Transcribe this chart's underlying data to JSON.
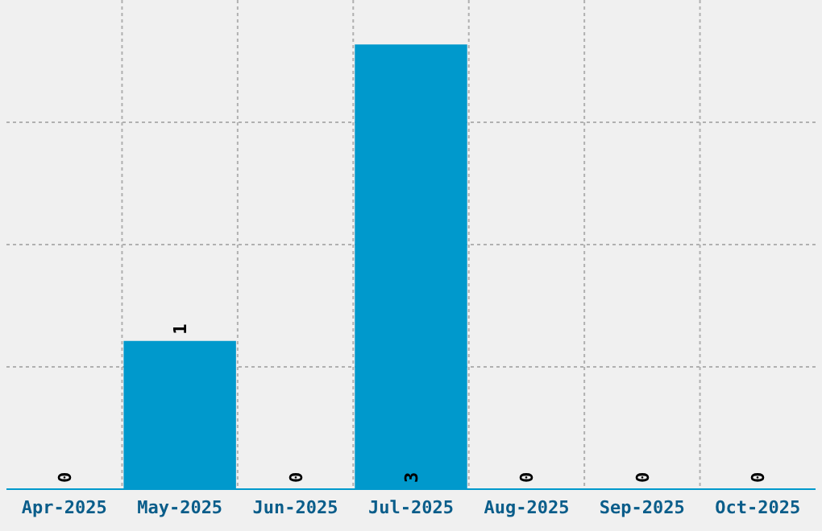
{
  "chart_data": {
    "type": "bar",
    "categories": [
      "Apr-2025",
      "May-2025",
      "Jun-2025",
      "Jul-2025",
      "Aug-2025",
      "Sep-2025",
      "Oct-2025"
    ],
    "values": [
      0,
      1,
      0,
      3,
      0,
      0,
      0
    ],
    "color": "#0099cc",
    "ylim": [
      0,
      3.3
    ],
    "yticks": [
      {
        "value": 0.825,
        "label": null
      },
      {
        "value": 1.65,
        "label": null
      },
      {
        "value": 2.475,
        "label": null
      }
    ],
    "grid": true,
    "data_labels": true,
    "tick_labels": "x"
  }
}
